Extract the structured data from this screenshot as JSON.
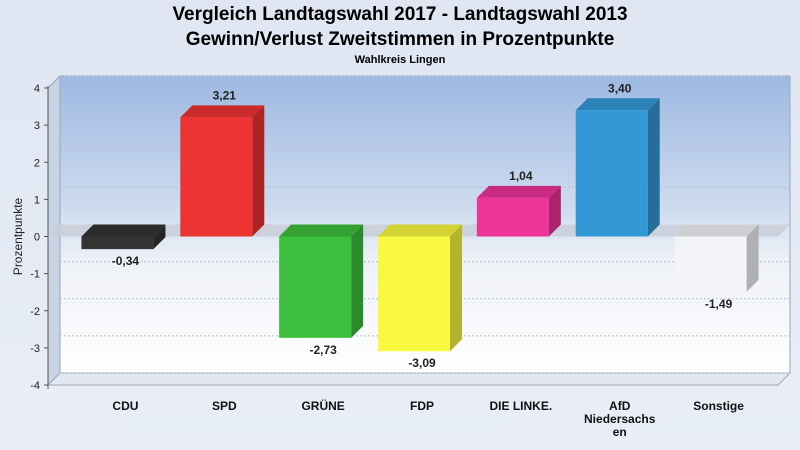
{
  "chart_data": {
    "type": "bar",
    "title": "Vergleich Landtagswahl 2017 - Landtagswahl 2013",
    "subtitle": "Gewinn/Verlust Zweitstimmen in Prozentpunkte",
    "subtitle2": "Wahlkreis Lingen",
    "ylabel": "Prozentpunkte",
    "ylim": [
      -4,
      4
    ],
    "yticks": [
      "4",
      "3",
      "2",
      "1",
      "0",
      "-1",
      "-2",
      "-3",
      "-4"
    ],
    "categories": [
      "CDU",
      "SPD",
      "GRÜNE",
      "FDP",
      "DIE LINKE.",
      "AfD Niedersachsen",
      "Sonstige"
    ],
    "category_lines": [
      [
        "CDU"
      ],
      [
        "SPD"
      ],
      [
        "GRÜNE"
      ],
      [
        "FDP"
      ],
      [
        "DIE LINKE."
      ],
      [
        "AfD",
        "Niedersachs",
        "en"
      ],
      [
        "Sonstige"
      ]
    ],
    "values": [
      -0.34,
      3.21,
      -2.73,
      -3.09,
      1.04,
      3.4,
      -1.49
    ],
    "value_labels": [
      "-0,34",
      "3,21",
      "-2,73",
      "-3,09",
      "1,04",
      "3,40",
      "-1,49"
    ],
    "colors": [
      "#333333",
      "#ee3333",
      "#3cbf3c",
      "#f8f840",
      "#ee3399",
      "#3399d6",
      "#f2f4f8"
    ]
  }
}
